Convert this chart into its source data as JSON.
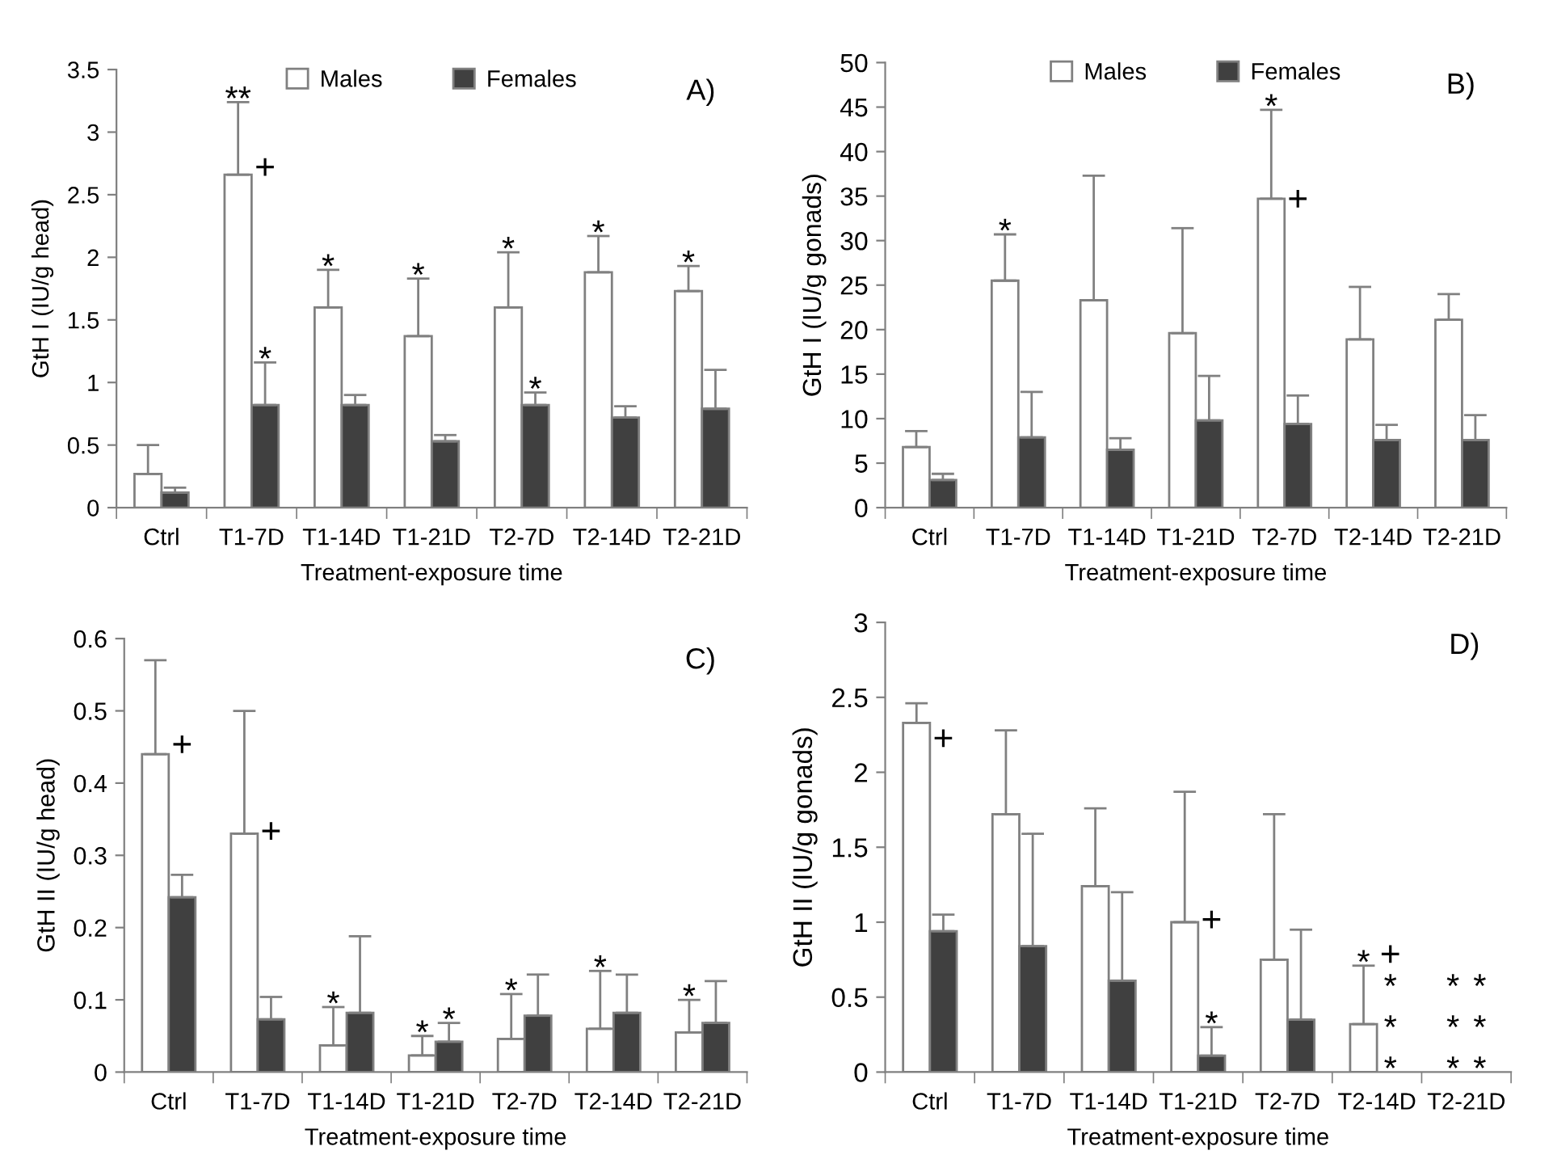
{
  "chart_data": [
    {
      "type": "bar",
      "title": "A)",
      "xlabel": "Treatment-exposure time",
      "ylabel": "GtH I (IU/g head)",
      "categories": [
        "Ctrl",
        "T1-7D",
        "T1-14D",
        "T1-21D",
        "T2-7D",
        "T2-14D",
        "T2-21D"
      ],
      "ylim": [
        0,
        3.5
      ],
      "yticks": [
        0,
        0.5,
        1,
        1.5,
        2,
        2.5,
        3,
        3.5
      ],
      "legend": "top",
      "series": [
        {
          "name": "Males",
          "color": "#ffffff",
          "values": [
            0.27,
            2.66,
            1.6,
            1.37,
            1.6,
            1.88,
            1.73
          ],
          "errors": [
            [
              0.27,
              0.5
            ],
            [
              2.66,
              3.24
            ],
            [
              1.6,
              1.9
            ],
            [
              1.37,
              1.83
            ],
            [
              1.6,
              2.04
            ],
            [
              1.88,
              2.17
            ],
            [
              1.73,
              1.93
            ]
          ],
          "value_labels": [
            null,
            "**",
            "*",
            "*",
            "*",
            "*",
            "*"
          ]
        },
        {
          "name": "Females",
          "color": "#404040",
          "values": [
            0.12,
            0.82,
            0.82,
            0.53,
            0.82,
            0.72,
            0.79
          ],
          "errors": [
            [
              0.12,
              0.16
            ],
            [
              0.82,
              1.16
            ],
            [
              0.82,
              0.9
            ],
            [
              0.53,
              0.58
            ],
            [
              0.82,
              0.92
            ],
            [
              0.72,
              0.81
            ],
            [
              0.79,
              1.1
            ]
          ],
          "value_labels": [
            null,
            "*",
            null,
            null,
            "*",
            null,
            null
          ]
        }
      ],
      "annotations": [
        {
          "text": "+",
          "x": "T1-7D",
          "y": 2.7
        }
      ]
    },
    {
      "type": "bar",
      "title": "B)",
      "xlabel": "Treatment-exposure time",
      "ylabel": "GtH I (IU/g gonads)",
      "categories": [
        "Ctrl",
        "T1-7D",
        "T1-14D",
        "T1-21D",
        "T2-7D",
        "T2-14D",
        "T2-21D"
      ],
      "ylim": [
        0,
        50
      ],
      "yticks": [
        0,
        5,
        10,
        15,
        20,
        25,
        30,
        35,
        40,
        45,
        50
      ],
      "legend": "top",
      "series": [
        {
          "name": "Males",
          "color": "#ffffff",
          "values": [
            6.8,
            25.5,
            23.3,
            19.6,
            34.7,
            18.9,
            21.1
          ],
          "errors": [
            [
              6.8,
              8.6
            ],
            [
              25.5,
              30.7
            ],
            [
              23.3,
              37.3
            ],
            [
              19.6,
              31.4
            ],
            [
              34.7,
              44.7
            ],
            [
              18.9,
              24.8
            ],
            [
              21.1,
              24.0
            ]
          ],
          "value_labels": [
            null,
            "*",
            null,
            null,
            "*",
            null,
            null
          ]
        },
        {
          "name": "Females",
          "color": "#404040",
          "values": [
            3.1,
            7.9,
            6.5,
            9.8,
            9.4,
            7.6,
            7.6
          ],
          "errors": [
            [
              3.1,
              3.8
            ],
            [
              7.9,
              13.0
            ],
            [
              6.5,
              7.8
            ],
            [
              9.8,
              14.8
            ],
            [
              9.4,
              12.6
            ],
            [
              7.6,
              9.3
            ],
            [
              7.6,
              10.4
            ]
          ]
        }
      ],
      "annotations": [
        {
          "text": "+",
          "x": "T2-7D",
          "y": 34.4
        }
      ]
    },
    {
      "type": "bar",
      "title": "C)",
      "xlabel": "Treatment-exposure time",
      "ylabel": "GtH II (IU/g head)",
      "categories": [
        "Ctrl",
        "T1-7D",
        "T1-14D",
        "T1-21D",
        "T2-7D",
        "T2-14D",
        "T2-21D"
      ],
      "ylim": [
        0,
        0.6
      ],
      "yticks": [
        0,
        0.1,
        0.2,
        0.3,
        0.4,
        0.5,
        0.6
      ],
      "series": [
        {
          "color": "#ffffff",
          "values": [
            0.44,
            0.33,
            0.037,
            0.023,
            0.046,
            0.06,
            0.055
          ],
          "errors": [
            [
              0.44,
              0.57
            ],
            [
              0.33,
              0.5
            ],
            [
              0.037,
              0.09
            ],
            [
              0.023,
              0.05
            ],
            [
              0.046,
              0.108
            ],
            [
              0.06,
              0.14
            ],
            [
              0.055,
              0.1
            ]
          ],
          "value_labels": [
            null,
            null,
            "*",
            "*",
            "*",
            "*",
            "*"
          ]
        },
        {
          "color": "#404040",
          "values": [
            0.242,
            0.073,
            0.082,
            0.042,
            0.078,
            0.082,
            0.068
          ],
          "errors": [
            [
              0.242,
              0.273
            ],
            [
              0.073,
              0.104
            ],
            [
              0.082,
              0.188
            ],
            [
              0.042,
              0.068
            ],
            [
              0.078,
              0.135
            ],
            [
              0.082,
              0.135
            ],
            [
              0.068,
              0.126
            ]
          ],
          "value_labels": [
            null,
            null,
            null,
            "*",
            null,
            null,
            null
          ]
        }
      ],
      "annotations": [
        {
          "text": "+",
          "x": "Ctrl",
          "y": 0.45
        },
        {
          "text": "+",
          "x": "T1-7D",
          "y": 0.33
        }
      ]
    },
    {
      "type": "bar",
      "title": "D)",
      "xlabel": "Treatment-exposure time",
      "ylabel": "GtH II (IU/g gonads)",
      "categories": [
        "Ctrl",
        "T1-7D",
        "T1-14D",
        "T1-21D",
        "T2-7D",
        "T2-14D",
        "T2-21D"
      ],
      "ylim": [
        0,
        3
      ],
      "yticks": [
        0,
        0.5,
        1,
        1.5,
        2,
        2.5,
        3
      ],
      "series": [
        {
          "color": "#ffffff",
          "values": [
            2.33,
            1.72,
            1.24,
            1.0,
            0.75,
            0.32,
            null
          ],
          "errors": [
            [
              2.33,
              2.46
            ],
            [
              1.72,
              2.28
            ],
            [
              1.24,
              1.76
            ],
            [
              1.0,
              1.87
            ],
            [
              0.75,
              1.72
            ],
            [
              0.32,
              0.71
            ],
            null
          ],
          "value_labels": [
            null,
            null,
            null,
            null,
            null,
            "*",
            "*\n*\n*"
          ]
        },
        {
          "color": "#404040",
          "values": [
            0.94,
            0.84,
            0.61,
            0.11,
            0.35,
            null,
            null
          ],
          "errors": [
            [
              0.94,
              1.05
            ],
            [
              0.84,
              1.59
            ],
            [
              0.61,
              1.2
            ],
            [
              0.11,
              0.3
            ],
            [
              0.35,
              0.95
            ],
            null,
            null
          ],
          "value_labels": [
            null,
            null,
            null,
            "*",
            null,
            "*\n*\n*",
            "*\n*\n*"
          ]
        }
      ],
      "annotations": [
        {
          "text": "+",
          "x": "Ctrl",
          "y": 2.21
        },
        {
          "text": "+",
          "x": "T1-21D",
          "y": 1.0
        },
        {
          "text": "+",
          "x": "T2-14D",
          "y": 0.71
        }
      ]
    }
  ]
}
